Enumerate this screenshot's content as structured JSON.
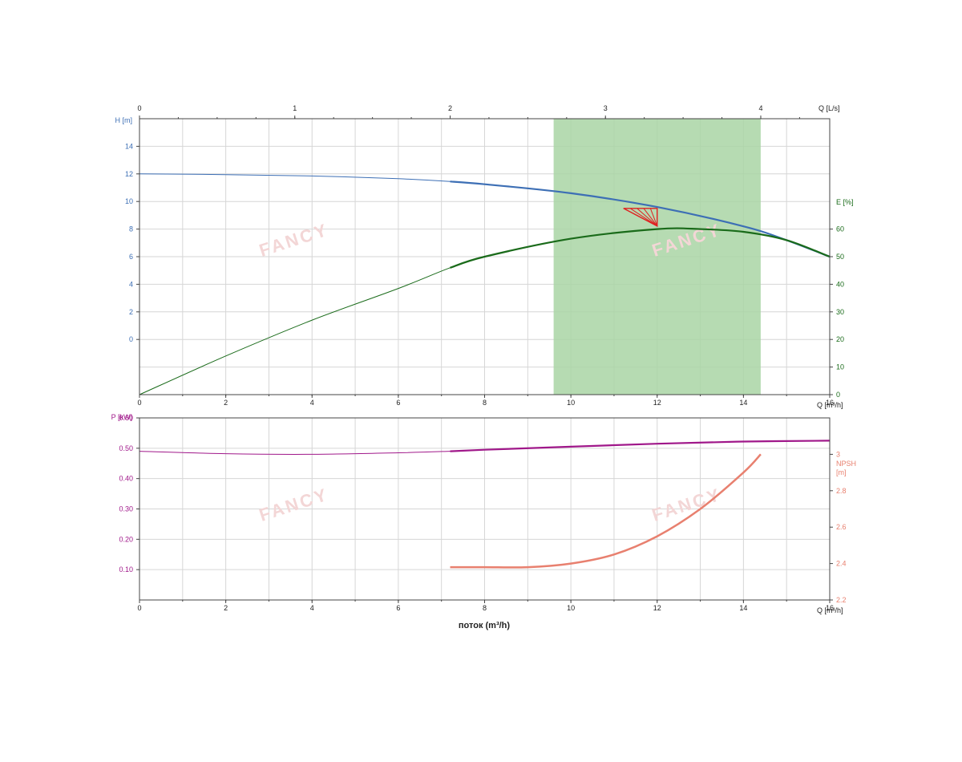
{
  "chart_data": [
    {
      "type": "line",
      "panel": "upper",
      "x_axis": {
        "label": "Q [m³/h]",
        "range": [
          0,
          16
        ],
        "ticks": [
          "0",
          "2",
          "4",
          "6",
          "8",
          "10",
          "12",
          "14",
          "16"
        ]
      },
      "x2_axis": {
        "label": "Q [L/s]",
        "range": [
          0,
          4.444
        ],
        "ticks": [
          "0",
          "1",
          "2",
          "3",
          "4"
        ]
      },
      "y_axis": {
        "label": "H [m]",
        "color": "#3d6fb5",
        "range": [
          -4,
          16
        ],
        "ticks": [
          "0",
          "2",
          "4",
          "6",
          "8",
          "10",
          "12",
          "14"
        ]
      },
      "y2_axis": {
        "label": "E [%]",
        "color": "#1a6b1a",
        "range": [
          0,
          100
        ],
        "ticks": [
          "0",
          "10",
          "20",
          "30",
          "40",
          "50",
          "60"
        ]
      },
      "grid": true,
      "highlight_band": {
        "x_from": 9.6,
        "x_to": 14.4,
        "color": "#a9d5a5"
      },
      "duty_point": {
        "x": 12,
        "y": 9.5,
        "color": "#e02020"
      },
      "series": [
        {
          "name": "H",
          "axis": "y",
          "color": "#3d6fb5",
          "bold_from": 7.2,
          "x": [
            0,
            2,
            4,
            6,
            7.2,
            8,
            10,
            12,
            14,
            15,
            16
          ],
          "y": [
            12,
            11.95,
            11.85,
            11.65,
            11.45,
            11.25,
            10.6,
            9.6,
            8.2,
            7.2,
            6
          ]
        },
        {
          "name": "E",
          "axis": "y2",
          "color": "#1a6b1a",
          "bold_from": 7.2,
          "x": [
            0,
            2,
            4,
            6,
            7.2,
            8,
            10,
            12,
            13,
            14,
            15,
            16
          ],
          "y": [
            0,
            14,
            27,
            38.5,
            46,
            50,
            56.5,
            60,
            60,
            59,
            56,
            50
          ]
        }
      ]
    },
    {
      "type": "line",
      "panel": "lower",
      "xlabel": "поток (m³/h)",
      "x_axis": {
        "label": "Q [m³/h]",
        "range": [
          0,
          16
        ],
        "ticks": [
          "0",
          "2",
          "4",
          "6",
          "8",
          "10",
          "12",
          "14",
          "16"
        ]
      },
      "y_axis": {
        "label": "P [kW]",
        "color": "#a0188a",
        "range": [
          0,
          0.6
        ],
        "ticks": [
          "0.10",
          "0.20",
          "0.30",
          "0.40",
          "0.50",
          "0.60"
        ]
      },
      "y2_axis": {
        "label_line1": "NPSH",
        "label_line2": "[m]",
        "color": "#e8806f",
        "range": [
          2.2,
          3.2
        ],
        "ticks": [
          "2.2",
          "2.4",
          "2.6",
          "2.8",
          "3"
        ]
      },
      "grid": true,
      "series": [
        {
          "name": "P",
          "axis": "y",
          "color": "#a0188a",
          "bold_from": 7.2,
          "x": [
            0,
            2,
            4,
            6,
            7.2,
            8,
            10,
            12,
            14,
            16
          ],
          "y": [
            0.49,
            0.482,
            0.48,
            0.485,
            0.49,
            0.495,
            0.505,
            0.515,
            0.522,
            0.525
          ]
        },
        {
          "name": "NPSH",
          "axis": "y2",
          "color": "#e8806f",
          "bold_from": 7.2,
          "x": [
            7.2,
            8,
            9,
            10,
            11,
            12,
            13,
            14,
            14.4
          ],
          "y": [
            2.38,
            2.38,
            2.38,
            2.4,
            2.45,
            2.55,
            2.7,
            2.9,
            3.0
          ]
        }
      ]
    }
  ]
}
